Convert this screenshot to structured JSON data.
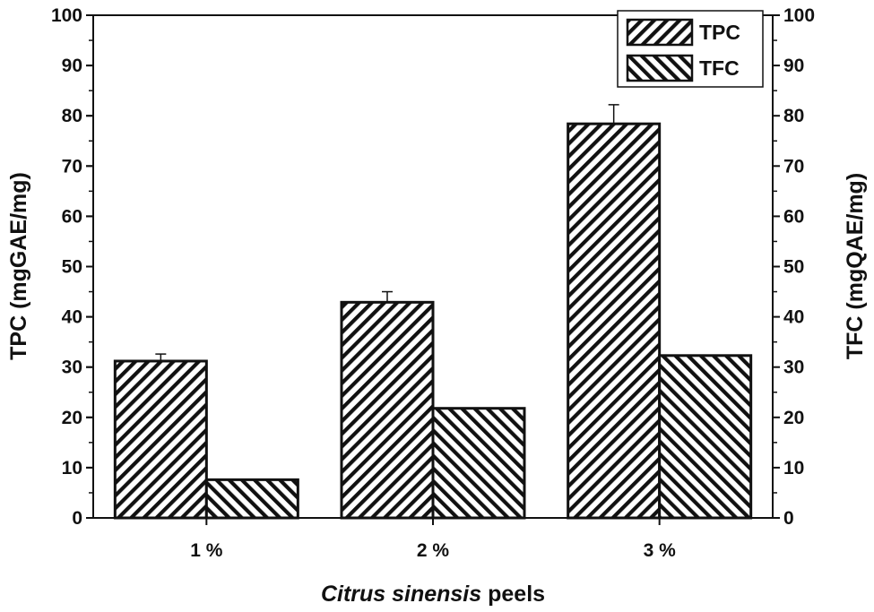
{
  "chart_data": {
    "type": "bar",
    "categories": [
      "1 %",
      "2 %",
      "3 %"
    ],
    "series": [
      {
        "name": "TPC",
        "axis": "left",
        "pattern": "forward-diagonal-hatch",
        "values": [
          31.2,
          42.9,
          78.4
        ],
        "error": [
          1.4,
          2.1,
          3.8
        ]
      },
      {
        "name": "TFC",
        "axis": "right",
        "pattern": "backward-diagonal-hatch",
        "values": [
          7.6,
          21.8,
          32.3
        ],
        "error": [
          null,
          null,
          null
        ]
      }
    ],
    "xlabel_italic": "Citrus sinensis",
    "xlabel_rest": " peels",
    "ylabel": "TPC (mgGAE/mg)",
    "y2label": "TFC (mgQAE/mg)",
    "ylim": [
      0,
      100
    ],
    "y2lim": [
      0,
      100
    ],
    "yticks": [
      0,
      10,
      20,
      30,
      40,
      50,
      60,
      70,
      80,
      90,
      100
    ],
    "grid": false,
    "legend_position": "top-right",
    "colors": {
      "ink": "#111111",
      "background": "#ffffff"
    }
  }
}
